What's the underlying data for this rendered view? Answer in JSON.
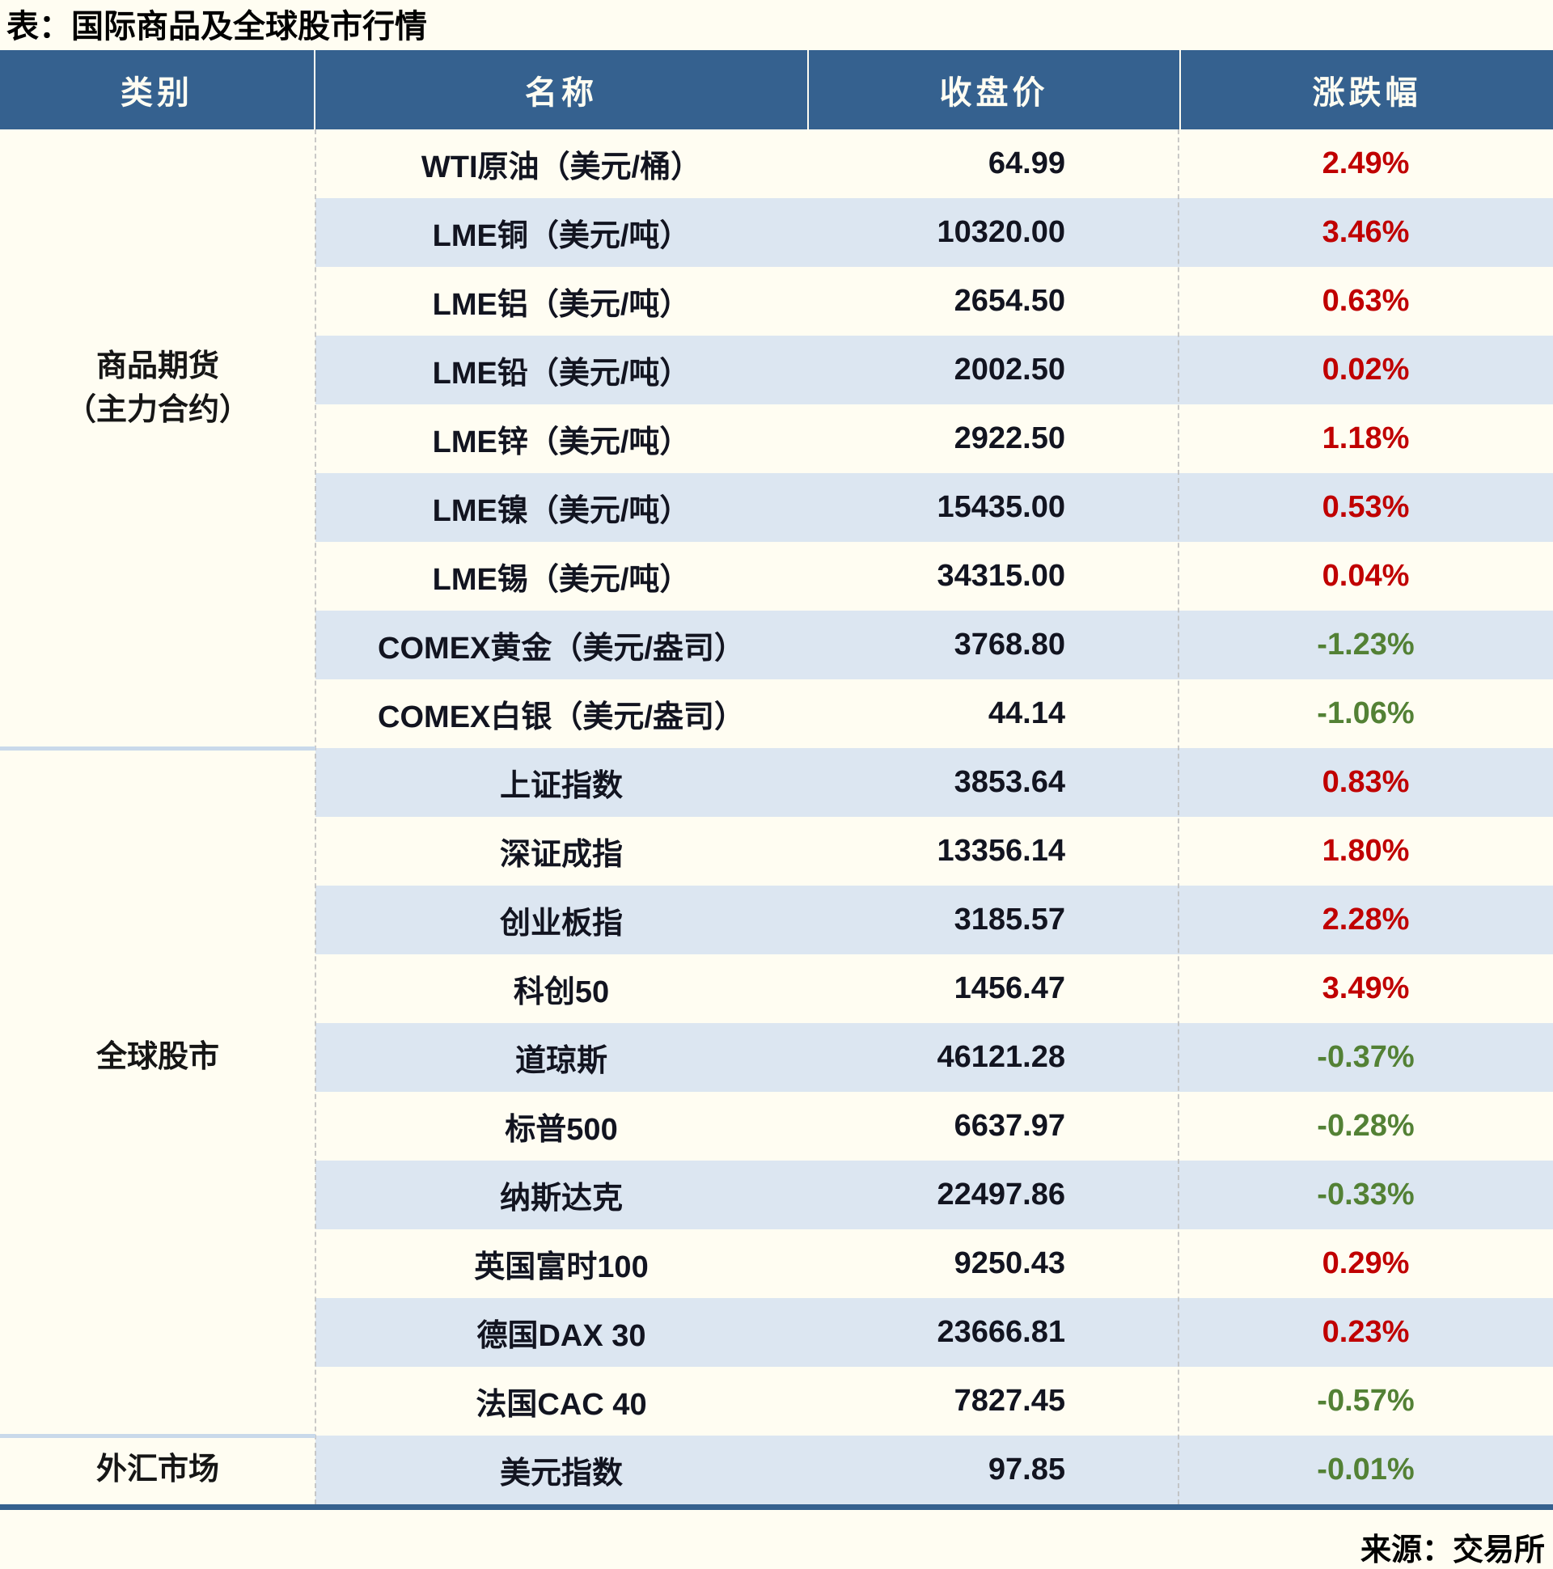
{
  "title": "表：国际商品及全球股市行情",
  "source": "来源：交易所",
  "colors": {
    "header_bg": "#35618F",
    "stripe": "#DCE6F1",
    "page_bg": "#FFFDF2",
    "up": "#C00000",
    "down": "#538135"
  },
  "table": {
    "headers": [
      "类别",
      "名称",
      "收盘价",
      "涨跌幅"
    ]
  },
  "sections": [
    {
      "category": "商品期货（主力合约）",
      "category_lines": [
        "商品期货",
        "（主力合约）"
      ],
      "rows": [
        {
          "name": "WTI原油（美元/桶）",
          "close": "64.99",
          "change": "2.49%",
          "direction": "up"
        },
        {
          "name": "LME铜（美元/吨）",
          "close": "10320.00",
          "change": "3.46%",
          "direction": "up"
        },
        {
          "name": "LME铝（美元/吨）",
          "close": "2654.50",
          "change": "0.63%",
          "direction": "up"
        },
        {
          "name": "LME铅（美元/吨）",
          "close": "2002.50",
          "change": "0.02%",
          "direction": "up"
        },
        {
          "name": "LME锌（美元/吨）",
          "close": "2922.50",
          "change": "1.18%",
          "direction": "up"
        },
        {
          "name": "LME镍（美元/吨）",
          "close": "15435.00",
          "change": "0.53%",
          "direction": "up"
        },
        {
          "name": "LME锡（美元/吨）",
          "close": "34315.00",
          "change": "0.04%",
          "direction": "up"
        },
        {
          "name": "COMEX黄金（美元/盎司）",
          "close": "3768.80",
          "change": "-1.23%",
          "direction": "down"
        },
        {
          "name": "COMEX白银（美元/盎司）",
          "close": "44.14",
          "change": "-1.06%",
          "direction": "down"
        }
      ]
    },
    {
      "category": "全球股市",
      "category_lines": [
        "全球股市"
      ],
      "rows": [
        {
          "name": "上证指数",
          "close": "3853.64",
          "change": "0.83%",
          "direction": "up"
        },
        {
          "name": "深证成指",
          "close": "13356.14",
          "change": "1.80%",
          "direction": "up"
        },
        {
          "name": "创业板指",
          "close": "3185.57",
          "change": "2.28%",
          "direction": "up"
        },
        {
          "name": "科创50",
          "close": "1456.47",
          "change": "3.49%",
          "direction": "up"
        },
        {
          "name": "道琼斯",
          "close": "46121.28",
          "change": "-0.37%",
          "direction": "down"
        },
        {
          "name": "标普500",
          "close": "6637.97",
          "change": "-0.28%",
          "direction": "down"
        },
        {
          "name": "纳斯达克",
          "close": "22497.86",
          "change": "-0.33%",
          "direction": "down"
        },
        {
          "name": "英国富时100",
          "close": "9250.43",
          "change": "0.29%",
          "direction": "up"
        },
        {
          "name": "德国DAX 30",
          "close": "23666.81",
          "change": "0.23%",
          "direction": "up"
        },
        {
          "name": "法国CAC 40",
          "close": "7827.45",
          "change": "-0.57%",
          "direction": "down"
        }
      ]
    },
    {
      "category": "外汇市场",
      "category_lines": [
        "外汇市场"
      ],
      "rows": [
        {
          "name": "美元指数",
          "close": "97.85",
          "change": "-0.01%",
          "direction": "down"
        }
      ]
    }
  ]
}
